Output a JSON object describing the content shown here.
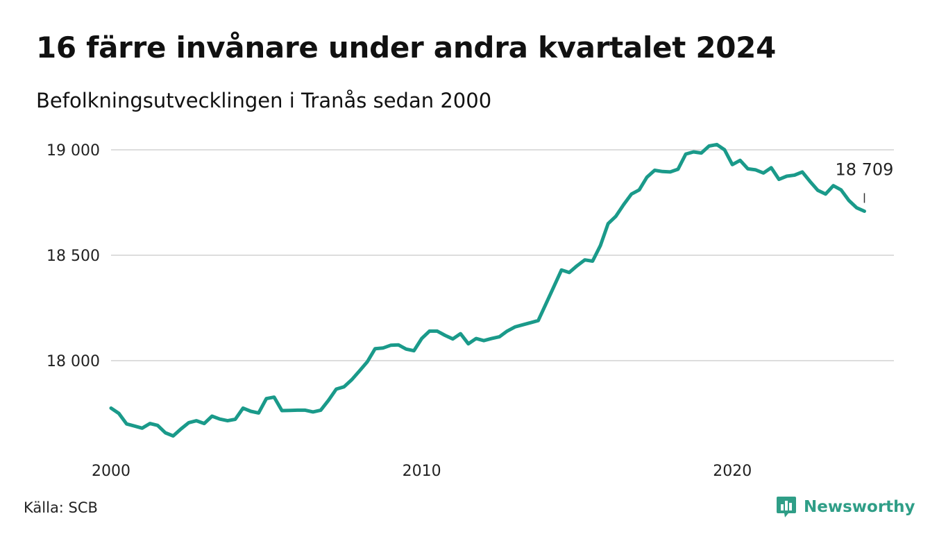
{
  "header": {
    "title": "16 färre invånare under andra kvartalet 2024",
    "subtitle": "Befolkningsutvecklingen i Tranås sedan 2000"
  },
  "footer": {
    "source": "Källa: SCB",
    "brand": "Newsworthy",
    "brand_icon": "newsworthy-chart-bubble-icon"
  },
  "colors": {
    "line": "#1a9a8a",
    "grid": "#dddddd",
    "brand": "#2f9e87"
  },
  "chart_data": {
    "type": "line",
    "title": "16 färre invånare under andra kvartalet 2024",
    "subtitle": "Befolkningsutvecklingen i Tranås sedan 2000",
    "xlabel": "",
    "ylabel": "",
    "ylim": [
      17620,
      19020
    ],
    "y_ticks": [
      {
        "value": 18000,
        "label": "18 000"
      },
      {
        "value": 18500,
        "label": "18 500"
      },
      {
        "value": 19000,
        "label": "19 000"
      }
    ],
    "x_ticks": [
      {
        "value": 2000,
        "label": "2000"
      },
      {
        "value": 2010,
        "label": "2010"
      },
      {
        "value": 2020,
        "label": "2020"
      }
    ],
    "grid": true,
    "legend": "none",
    "end_label": "18 709",
    "series": [
      {
        "x": [
          2000.0,
          2000.25,
          2000.5,
          2000.75,
          2001.0,
          2001.25,
          2001.5,
          2001.75,
          2002.0,
          2002.25,
          2002.5,
          2002.75,
          2003.0,
          2003.25,
          2003.5,
          2003.75,
          2004.0,
          2004.25,
          2004.5,
          2004.75,
          2005.0,
          2005.25,
          2005.5,
          2005.75,
          2006.0,
          2006.25,
          2006.5,
          2006.75,
          2007.0,
          2007.25,
          2007.5,
          2007.75,
          2008.0,
          2008.25,
          2008.5,
          2008.75,
          2009.0,
          2009.25,
          2009.5,
          2009.75,
          2010.0,
          2010.25,
          2010.5,
          2010.75,
          2011.0,
          2011.25,
          2011.5,
          2011.75,
          2012.0,
          2012.25,
          2012.5,
          2012.75,
          2013.0,
          2013.25,
          2013.5,
          2013.75,
          2014.0,
          2014.25,
          2014.5,
          2014.75,
          2015.0,
          2015.25,
          2015.5,
          2015.75,
          2016.0,
          2016.25,
          2016.5,
          2016.75,
          2017.0,
          2017.25,
          2017.5,
          2017.75,
          2018.0,
          2018.25,
          2018.5,
          2018.75,
          2019.0,
          2019.25,
          2019.5,
          2019.75,
          2020.0,
          2020.25,
          2020.5,
          2020.75,
          2021.0,
          2021.25,
          2021.5,
          2021.75,
          2022.0,
          2022.25,
          2022.5,
          2022.75,
          2023.0,
          2023.25,
          2023.5,
          2023.75,
          2024.0,
          2024.25
        ],
        "values": [
          17775,
          17750,
          17700,
          17690,
          17680,
          17702,
          17693,
          17658,
          17643,
          17676,
          17706,
          17715,
          17702,
          17737,
          17723,
          17715,
          17722,
          17775,
          17760,
          17752,
          17820,
          17827,
          17763,
          17764,
          17765,
          17765,
          17757,
          17765,
          17812,
          17865,
          17876,
          17910,
          17952,
          17995,
          18057,
          18060,
          18073,
          18075,
          18055,
          18047,
          18105,
          18140,
          18140,
          18120,
          18103,
          18128,
          18080,
          18105,
          18095,
          18105,
          18113,
          18140,
          18160,
          18170,
          18180,
          18190,
          18270,
          18350,
          18430,
          18418,
          18450,
          18478,
          18472,
          18545,
          18650,
          18685,
          18740,
          18790,
          18810,
          18870,
          18903,
          18897,
          18895,
          18908,
          18980,
          18990,
          18985,
          19018,
          19025,
          19000,
          18930,
          18950,
          18910,
          18905,
          18890,
          18915,
          18860,
          18875,
          18880,
          18895,
          18850,
          18808,
          18790,
          18830,
          18810,
          18760,
          18725,
          18709
        ]
      }
    ]
  }
}
